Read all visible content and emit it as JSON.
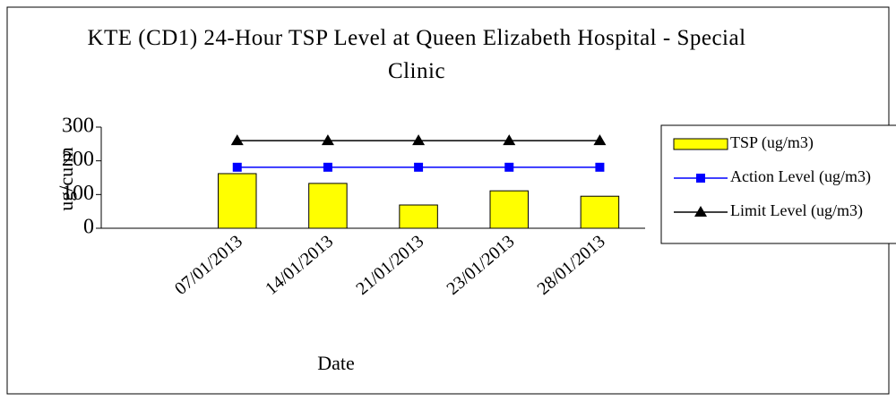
{
  "chart_data": {
    "type": "bar_line",
    "title": "KTE (CD1) 24-Hour TSP Level at Queen Elizabeth Hospital - Special Clinic",
    "y_label": "ug/cu.m",
    "x_label": "Date",
    "categories": [
      null,
      "07/01/2013",
      "14/01/2013",
      "21/01/2013",
      "23/01/2013",
      "28/01/2013"
    ],
    "series": [
      {
        "name": "TSP (ug/m3)",
        "type": "bar",
        "color": "#ffff00",
        "values": [
          null,
          162,
          133,
          69,
          111,
          95
        ]
      },
      {
        "name": "Action Level (ug/m3)",
        "type": "line",
        "marker": "square",
        "color": "#0000ff",
        "values": [
          null,
          181,
          181,
          181,
          181,
          181
        ]
      },
      {
        "name": "Limit Level (ug/m3)",
        "type": "line",
        "marker": "triangle",
        "color": "#000000",
        "values": [
          null,
          260,
          260,
          260,
          260,
          260
        ]
      }
    ],
    "ylim": [
      0,
      300
    ],
    "yticks": [
      0,
      100,
      200,
      300
    ],
    "legend": "right"
  }
}
